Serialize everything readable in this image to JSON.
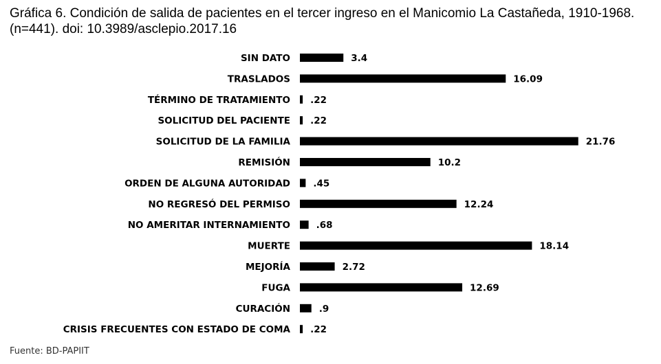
{
  "chart_data": {
    "type": "bar",
    "orientation": "horizontal",
    "title": "Gráfica 6. Condición de salida de pacientes en el tercer ingreso en el Manicomio La Castañeda, 1910-1968. (n=441). doi: 10.3989/asclepio.2017.16",
    "source": "Fuente: BD-PAPIIT",
    "categories": [
      "SIN DATO",
      "TRASLADOS",
      "TÉRMINO DE TRATAMIENTO",
      "SOLICITUD DEL PACIENTE",
      "SOLICITUD DE LA FAMILIA",
      "REMISIÓN",
      "ORDEN DE ALGUNA AUTORIDAD",
      "NO REGRESÓ DEL PERMISO",
      "NO AMERITAR INTERNAMIENTO",
      "MUERTE",
      "MEJORÍA",
      "FUGA",
      "CURACIÓN",
      "CRISIS FRECUENTES CON ESTADO DE COMA"
    ],
    "values": [
      3.4,
      16.09,
      0.22,
      0.22,
      21.76,
      10.2,
      0.45,
      12.24,
      0.68,
      18.14,
      2.72,
      12.69,
      0.9,
      0.22
    ],
    "value_labels": [
      "3.4",
      "16.09",
      ".22",
      ".22",
      "21.76",
      "10.2",
      ".45",
      "12.24",
      ".68",
      "18.14",
      "2.72",
      "12.69",
      ".9",
      ".22"
    ],
    "xlim": [
      0,
      22
    ],
    "grid": false,
    "bar_color": "#000000"
  }
}
